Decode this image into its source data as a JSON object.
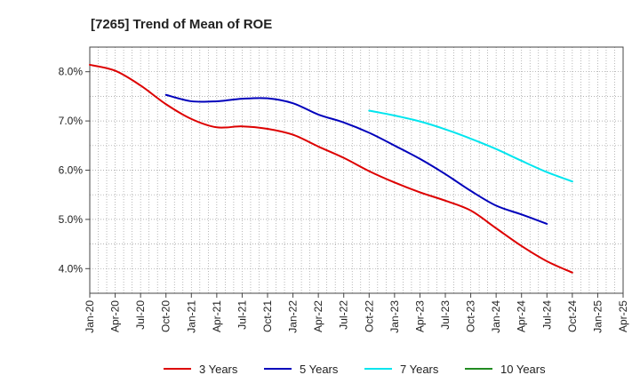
{
  "chart_data": {
    "type": "line",
    "title": "[7265]  Trend of Mean of ROE",
    "xlabel": "",
    "ylabel": "",
    "ylim": [
      3.5,
      8.5
    ],
    "x_ticks": [
      "Jan-20",
      "Apr-20",
      "Jul-20",
      "Oct-20",
      "Jan-21",
      "Apr-21",
      "Jul-21",
      "Oct-21",
      "Jan-22",
      "Apr-22",
      "Jul-22",
      "Oct-22",
      "Jan-23",
      "Apr-23",
      "Jul-23",
      "Oct-23",
      "Jan-24",
      "Apr-24",
      "Jul-24",
      "Oct-24",
      "Jan-25",
      "Apr-25"
    ],
    "y_ticks": [
      {
        "value": 4.0,
        "label": "4.0%"
      },
      {
        "value": 5.0,
        "label": "5.0%"
      },
      {
        "value": 6.0,
        "label": "6.0%"
      },
      {
        "value": 7.0,
        "label": "7.0%"
      },
      {
        "value": 8.0,
        "label": "8.0%"
      }
    ],
    "grid": true,
    "legend_position": "bottom",
    "series": [
      {
        "name": "3 Years",
        "color": "#dd0000",
        "start_index": 0,
        "values": [
          8.14,
          8.02,
          7.72,
          7.34,
          7.04,
          6.87,
          6.89,
          6.84,
          6.72,
          6.48,
          6.25,
          5.98,
          5.75,
          5.55,
          5.38,
          5.18,
          4.82,
          4.46,
          4.15,
          3.92
        ]
      },
      {
        "name": "5 Years",
        "color": "#0000bb",
        "start_index": 3,
        "values": [
          7.53,
          7.4,
          7.4,
          7.45,
          7.46,
          7.36,
          7.13,
          6.97,
          6.76,
          6.5,
          6.23,
          5.92,
          5.58,
          5.28,
          5.1,
          4.91
        ]
      },
      {
        "name": "7 Years",
        "color": "#00e5ee",
        "start_index": 11,
        "values": [
          7.21,
          7.11,
          6.99,
          6.83,
          6.64,
          6.43,
          6.19,
          5.96,
          5.77
        ]
      },
      {
        "name": "10 Years",
        "color": "#228b22",
        "start_index": 0,
        "values": []
      }
    ]
  }
}
